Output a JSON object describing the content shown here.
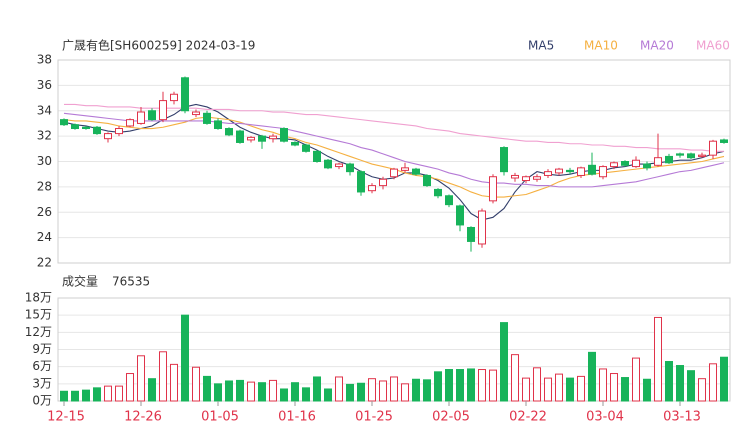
{
  "chart_data": [
    {
      "type": "candlestick",
      "title": "广晟有色[SH600259] 2024-03-19",
      "up_color": "#e0334a",
      "down_color": "#17b35a",
      "ylim": [
        22,
        38
      ],
      "yticks": [
        22,
        24,
        26,
        28,
        30,
        32,
        34,
        36,
        38
      ],
      "grid": true,
      "open": [
        33.3,
        32.9,
        32.7,
        32.7,
        31.8,
        32.2,
        32.8,
        33.0,
        34.0,
        33.3,
        34.8,
        36.6,
        33.7,
        33.8,
        33.2,
        32.6,
        32.4,
        31.7,
        32.0,
        31.8,
        32.6,
        31.5,
        31.3,
        30.8,
        30.1,
        29.6,
        29.8,
        29.2,
        27.7,
        28.1,
        28.8,
        29.3,
        29.4,
        28.9,
        27.8,
        27.3,
        26.5,
        24.8,
        23.5,
        26.9,
        31.1,
        28.7,
        28.5,
        28.6,
        28.9,
        29.1,
        29.3,
        28.9,
        29.7,
        28.8,
        29.6,
        30.0,
        29.6,
        29.8,
        29.7,
        30.4,
        30.6,
        30.6,
        30.4,
        30.5,
        31.7
      ],
      "high": [
        33.4,
        33.0,
        32.8,
        32.8,
        32.3,
        32.8,
        33.4,
        34.3,
        34.2,
        35.5,
        35.5,
        36.7,
        34.1,
        34.0,
        33.4,
        32.7,
        32.5,
        32.0,
        32.1,
        32.2,
        32.7,
        31.6,
        31.4,
        30.9,
        30.2,
        29.9,
        29.9,
        29.3,
        28.3,
        28.8,
        29.5,
        29.9,
        29.5,
        29.0,
        27.9,
        27.4,
        26.6,
        24.9,
        26.3,
        29.0,
        31.2,
        29.1,
        28.9,
        29.0,
        29.4,
        29.5,
        29.5,
        29.6,
        30.7,
        29.7,
        30.0,
        30.1,
        30.4,
        30.0,
        32.2,
        30.6,
        30.7,
        30.7,
        30.7,
        31.7,
        31.8
      ],
      "low": [
        32.8,
        32.5,
        32.5,
        32.1,
        31.5,
        32.0,
        32.7,
        32.9,
        33.2,
        33.1,
        34.5,
        33.8,
        33.5,
        32.9,
        32.5,
        32.0,
        31.4,
        31.5,
        31.0,
        31.5,
        31.5,
        31.2,
        30.7,
        29.9,
        29.4,
        29.4,
        28.9,
        27.3,
        27.5,
        27.8,
        28.6,
        29.1,
        28.9,
        28.0,
        27.1,
        26.4,
        24.5,
        22.9,
        23.2,
        26.7,
        28.9,
        28.4,
        28.3,
        28.4,
        28.7,
        28.9,
        29.0,
        28.7,
        28.9,
        28.6,
        29.4,
        29.6,
        29.5,
        29.3,
        29.6,
        29.8,
        30.3,
        30.2,
        30.3,
        30.2,
        31.4
      ],
      "close": [
        32.9,
        32.6,
        32.6,
        32.2,
        32.2,
        32.6,
        33.3,
        33.9,
        33.3,
        34.8,
        35.3,
        34.0,
        33.9,
        33.0,
        32.6,
        32.1,
        31.5,
        31.9,
        31.6,
        32.0,
        31.6,
        31.3,
        30.8,
        30.0,
        29.5,
        29.8,
        29.2,
        27.6,
        28.1,
        28.6,
        29.4,
        29.5,
        29.0,
        28.1,
        27.3,
        26.6,
        25.0,
        23.7,
        26.1,
        28.8,
        29.2,
        28.9,
        28.8,
        28.8,
        29.2,
        29.4,
        29.2,
        29.5,
        29.0,
        29.6,
        29.9,
        29.7,
        30.1,
        29.5,
        30.3,
        29.9,
        30.5,
        30.3,
        30.5,
        31.6,
        31.5
      ],
      "series": [
        {
          "name": "MA5",
          "color": "#333f6b",
          "values": [
            33.1,
            32.9,
            32.8,
            32.6,
            32.4,
            32.3,
            32.4,
            32.6,
            32.8,
            33.3,
            33.7,
            34.3,
            34.5,
            34.3,
            33.9,
            33.3,
            32.7,
            32.3,
            32.0,
            31.8,
            31.8,
            31.7,
            31.3,
            30.9,
            30.4,
            30.0,
            29.7,
            29.2,
            28.8,
            28.6,
            28.7,
            29.1,
            29.1,
            28.9,
            28.5,
            27.9,
            27.0,
            25.9,
            25.4,
            25.6,
            26.3,
            27.6,
            28.6,
            29.2,
            29.0,
            28.9,
            29.0,
            29.2,
            29.3,
            29.3,
            29.5,
            29.6,
            29.8,
            29.8,
            29.9,
            30.0,
            30.1,
            30.1,
            30.3,
            30.6,
            30.8
          ]
        },
        {
          "name": "MA10",
          "color": "#f5b041",
          "values": [
            33.3,
            33.2,
            33.2,
            33.1,
            33.0,
            32.8,
            32.7,
            32.6,
            32.6,
            32.7,
            32.9,
            33.1,
            33.4,
            33.5,
            33.4,
            33.3,
            33.1,
            32.8,
            32.5,
            32.3,
            32.0,
            31.8,
            31.5,
            31.3,
            31.0,
            30.7,
            30.4,
            30.1,
            29.8,
            29.6,
            29.4,
            29.1,
            28.9,
            28.8,
            28.6,
            28.3,
            28.0,
            27.6,
            27.3,
            27.2,
            27.2,
            27.3,
            27.4,
            27.7,
            28.0,
            28.4,
            28.7,
            28.9,
            29.0,
            29.1,
            29.2,
            29.3,
            29.4,
            29.5,
            29.6,
            29.7,
            29.8,
            29.9,
            30.0,
            30.2,
            30.4
          ]
        },
        {
          "name": "MA20",
          "color": "#b57ad6",
          "values": [
            33.8,
            33.7,
            33.6,
            33.5,
            33.4,
            33.3,
            33.2,
            33.2,
            33.2,
            33.2,
            33.2,
            33.2,
            33.2,
            33.2,
            33.1,
            33.0,
            33.0,
            32.9,
            32.8,
            32.7,
            32.6,
            32.4,
            32.2,
            32.0,
            31.8,
            31.6,
            31.4,
            31.1,
            30.9,
            30.6,
            30.3,
            30.0,
            29.8,
            29.6,
            29.4,
            29.1,
            28.9,
            28.6,
            28.4,
            28.3,
            28.3,
            28.2,
            28.2,
            28.1,
            28.1,
            28.0,
            28.0,
            28.0,
            28.0,
            28.1,
            28.2,
            28.3,
            28.4,
            28.6,
            28.8,
            29.0,
            29.2,
            29.3,
            29.5,
            29.7,
            29.9
          ]
        },
        {
          "name": "MA60",
          "color": "#f0a0d0",
          "values": [
            34.5,
            34.5,
            34.4,
            34.4,
            34.3,
            34.3,
            34.3,
            34.2,
            34.2,
            34.2,
            34.2,
            34.2,
            34.2,
            34.1,
            34.1,
            34.1,
            34.0,
            34.0,
            34.0,
            33.9,
            33.9,
            33.8,
            33.7,
            33.7,
            33.6,
            33.5,
            33.4,
            33.3,
            33.2,
            33.1,
            33.0,
            32.9,
            32.8,
            32.6,
            32.5,
            32.4,
            32.2,
            32.1,
            32.0,
            31.9,
            31.8,
            31.7,
            31.6,
            31.6,
            31.5,
            31.5,
            31.4,
            31.4,
            31.3,
            31.3,
            31.2,
            31.2,
            31.1,
            31.1,
            31.0,
            31.0,
            31.0,
            30.9,
            30.9,
            30.8,
            30.8
          ]
        }
      ]
    },
    {
      "type": "bar",
      "title": "成交量",
      "latest": 76535,
      "ylim": [
        0,
        18
      ],
      "yticks": [
        {
          "value": 0,
          "label": "0万"
        },
        {
          "value": 3,
          "label": "3万"
        },
        {
          "value": 6,
          "label": "6万"
        },
        {
          "value": 9,
          "label": "9万"
        },
        {
          "value": 12,
          "label": "12万"
        },
        {
          "value": 15,
          "label": "15万"
        },
        {
          "value": 18,
          "label": "18万"
        }
      ],
      "grid": true,
      "categories": [
        "12-15",
        null,
        null,
        null,
        null,
        null,
        null,
        "12-26",
        null,
        null,
        null,
        null,
        null,
        null,
        "01-05",
        null,
        null,
        null,
        null,
        null,
        null,
        "01-16",
        null,
        null,
        null,
        null,
        null,
        null,
        "01-25",
        null,
        null,
        null,
        null,
        null,
        null,
        "02-05",
        null,
        null,
        null,
        null,
        null,
        null,
        "02-22",
        null,
        null,
        null,
        null,
        null,
        null,
        "03-04",
        null,
        null,
        null,
        null,
        null,
        null,
        "03-13",
        null,
        null,
        null,
        null
      ],
      "values": [
        1.7,
        1.7,
        1.9,
        2.3,
        2.6,
        2.6,
        4.8,
        7.9,
        3.9,
        8.6,
        6.4,
        15,
        5.9,
        4.3,
        3.0,
        3.5,
        3.6,
        3.3,
        3.2,
        3.6,
        2.1,
        3.2,
        2.3,
        4.2,
        2.1,
        4.2,
        2.9,
        3.1,
        3.9,
        3.5,
        4.2,
        3.0,
        3.8,
        3.7,
        5.1,
        5.5,
        5.5,
        5.6,
        5.5,
        5.4,
        13.7,
        8.1,
        4.0,
        5.8,
        4.0,
        4.7,
        4.0,
        4.3,
        8.5,
        5.6,
        4.8,
        4.1,
        7.5,
        3.8,
        14.6,
        6.9,
        6.2,
        5.3,
        3.9,
        6.5,
        7.65
      ]
    }
  ]
}
